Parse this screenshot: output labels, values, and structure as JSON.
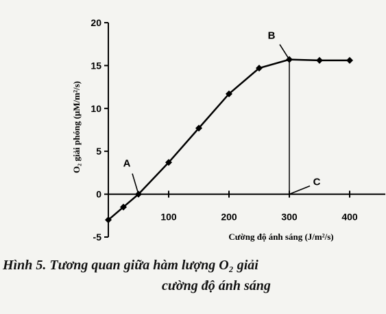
{
  "chart_data": {
    "type": "line",
    "xlabel": "Cường độ ánh sáng (J/m²/s)",
    "ylabel": "O₂ giải phóng (μM/m²/s)",
    "xlim": [
      0,
      400
    ],
    "ylim": [
      -5,
      20
    ],
    "x_ticks": [
      100,
      200,
      300,
      400
    ],
    "y_ticks": [
      -5,
      0,
      5,
      10,
      15,
      20
    ],
    "grid": false,
    "legend": "none",
    "series": [
      {
        "x": [
          0,
          25,
          50,
          100,
          150,
          200,
          250,
          300,
          350,
          400
        ],
        "y": [
          -3,
          -1.5,
          0,
          3.7,
          7.7,
          11.7,
          14.7,
          15.7,
          15.6,
          15.6
        ]
      }
    ],
    "annotations": [
      {
        "label": "A",
        "x": 50,
        "y": 0
      },
      {
        "label": "B",
        "x": 300,
        "y": 15.7
      },
      {
        "label": "C",
        "x": 300,
        "y": 0
      }
    ]
  },
  "caption": {
    "line1": "Hình 5. Tương quan giữa hàm lượng O₂ giải",
    "line2": "cường độ ánh sáng"
  },
  "colors": {
    "line": "#000000",
    "marker": "#000000"
  }
}
